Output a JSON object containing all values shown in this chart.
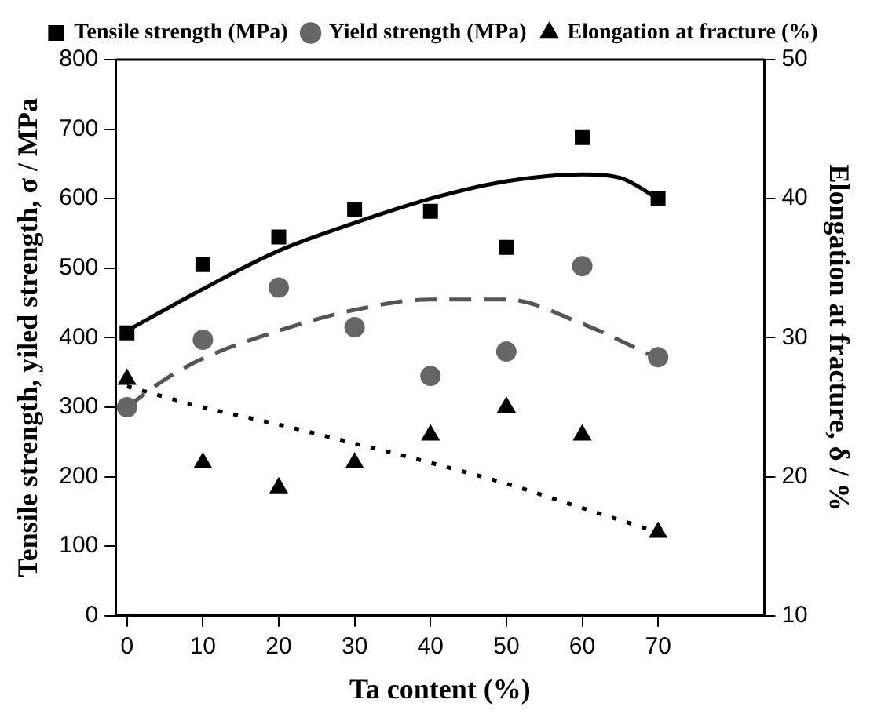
{
  "chart_data": {
    "type": "scatter",
    "xlabel": "Ta content (%)",
    "ylabel": "Tensile strength, yiled strength, σ / MPa",
    "y2label": "Elongation at fracture, δ / %",
    "x": [
      0,
      10,
      20,
      30,
      40,
      50,
      60,
      70
    ],
    "xlim": [
      -1.5,
      84
    ],
    "xticks": [
      0,
      10,
      20,
      30,
      40,
      50,
      60,
      70
    ],
    "ylim": [
      0,
      800
    ],
    "yticks": [
      0,
      100,
      200,
      300,
      400,
      500,
      600,
      700,
      800
    ],
    "y2lim": [
      10,
      50
    ],
    "y2ticks": [
      10,
      20,
      30,
      40,
      50
    ],
    "legend": "top",
    "grid": false,
    "series": [
      {
        "name": "Tensile strength (MPa)",
        "color": "#000000",
        "marker": "square",
        "values": [
          407,
          505,
          545,
          585,
          582,
          530,
          688,
          600
        ]
      },
      {
        "name": "Yield strength (MPa)",
        "color": "#666666",
        "marker": "circle",
        "values": [
          300,
          397,
          472,
          415,
          345,
          380,
          503,
          372
        ]
      },
      {
        "name": "Elongation at fracture (%)",
        "color": "#000000",
        "marker": "triangle",
        "axis": "y2",
        "values": [
          27,
          21,
          19.2,
          21,
          23,
          25,
          23,
          16
        ]
      },
      {
        "type": "line",
        "color": "#000000",
        "line_style": "solid",
        "marker": "none",
        "x": [
          0,
          10,
          20,
          30,
          40,
          50,
          60,
          65,
          70
        ],
        "values": [
          410,
          470,
          525,
          565,
          600,
          625,
          635,
          630,
          600
        ]
      },
      {
        "type": "line",
        "color": "#555555",
        "line_style": "dashed",
        "marker": "none",
        "x": [
          0,
          5,
          10,
          20,
          30,
          40,
          50,
          60,
          70
        ],
        "values": [
          300,
          340,
          370,
          410,
          440,
          455,
          455,
          420,
          370
        ]
      },
      {
        "type": "line",
        "color": "#000000",
        "line_style": "dotted",
        "marker": "none",
        "axis": "y2",
        "x": [
          0,
          10,
          20,
          30,
          40,
          50,
          60,
          70
        ],
        "values": [
          26.5,
          25,
          23.75,
          22.4,
          21,
          19.5,
          17.75,
          16
        ]
      }
    ]
  }
}
